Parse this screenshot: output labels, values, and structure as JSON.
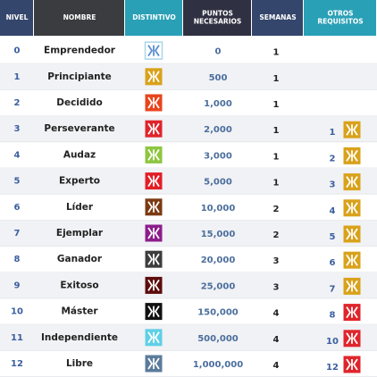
{
  "table": {
    "header": [
      [
        "NIVEL"
      ],
      [
        "NOMBRE"
      ],
      [
        "DISTINTIVO"
      ],
      [
        "PUNTOS",
        "NECESARIOS"
      ],
      [
        "SEMANAS"
      ],
      [
        "OTROS",
        "REQUISITOS"
      ]
    ],
    "header_colors": [
      "#34466b",
      "#3b3c40",
      "#2aa0b6",
      "#2f3142",
      "#34466b",
      "#2aa0b6"
    ],
    "rows": [
      {
        "nivel": "0",
        "nombre": "Emprendedor",
        "badge_color": "#ffffff",
        "puntos": "0",
        "semanas": "1",
        "otros": null
      },
      {
        "nivel": "1",
        "nombre": "Principiante",
        "badge_color": "#d9a21b",
        "puntos": "500",
        "semanas": "1",
        "otros": null
      },
      {
        "nivel": "2",
        "nombre": "Decidido",
        "badge_color": "#e8451c",
        "puntos": "1,000",
        "semanas": "1",
        "otros": null
      },
      {
        "nivel": "3",
        "nombre": "Perseverante",
        "badge_color": "#e0242b",
        "puntos": "2,000",
        "semanas": "1",
        "otros": {
          "numero": "1",
          "color": "#d9a21b"
        }
      },
      {
        "nivel": "4",
        "nombre": "Audaz",
        "badge_color": "#8dc63f",
        "puntos": "3,000",
        "semanas": "1",
        "otros": {
          "numero": "2",
          "color": "#d9a21b"
        }
      },
      {
        "nivel": "5",
        "nombre": "Experto",
        "badge_color": "#e31e26",
        "puntos": "5,000",
        "semanas": "1",
        "otros": {
          "numero": "3",
          "color": "#d9a21b"
        }
      },
      {
        "nivel": "6",
        "nombre": "Líder",
        "badge_color": "#7b3a12",
        "puntos": "10,000",
        "semanas": "2",
        "otros": {
          "numero": "4",
          "color": "#d9a21b"
        }
      },
      {
        "nivel": "7",
        "nombre": "Ejemplar",
        "badge_color": "#8c1d8c",
        "puntos": "15,000",
        "semanas": "2",
        "otros": {
          "numero": "5",
          "color": "#d9a21b"
        }
      },
      {
        "nivel": "8",
        "nombre": "Ganador",
        "badge_color": "#3d3d3d",
        "puntos": "20,000",
        "semanas": "3",
        "otros": {
          "numero": "6",
          "color": "#d9a21b"
        }
      },
      {
        "nivel": "9",
        "nombre": "Exitoso",
        "badge_color": "#5c0c0c",
        "puntos": "25,000",
        "semanas": "3",
        "otros": {
          "numero": "7",
          "color": "#d9a21b"
        }
      },
      {
        "nivel": "10",
        "nombre": "Máster",
        "badge_color": "#121212",
        "puntos": "150,000",
        "semanas": "4",
        "otros": {
          "numero": "8",
          "color": "#e0242b"
        }
      },
      {
        "nivel": "11",
        "nombre": "Independiente",
        "badge_color": "#5fd0e6",
        "puntos": "500,000",
        "semanas": "4",
        "otros": {
          "numero": "10",
          "color": "#e0242b"
        }
      },
      {
        "nivel": "12",
        "nombre": "Libre",
        "badge_color": "#5b7b9b",
        "puntos": "1,000,000",
        "semanas": "4",
        "otros": {
          "numero": "12",
          "color": "#e0242b"
        }
      }
    ]
  }
}
